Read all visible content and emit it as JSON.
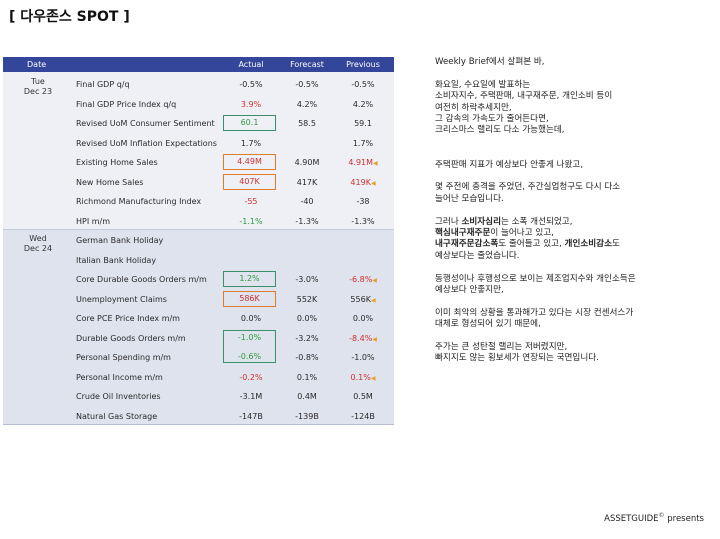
{
  "title": "[ 다우존스 SPOT ]",
  "table": {
    "headers": {
      "date": "Date",
      "actual": "Actual",
      "forecast": "Forecast",
      "previous": "Previous"
    },
    "days": [
      {
        "day": "Tue",
        "date": "Dec 23"
      },
      {
        "day": "Wed",
        "date": "Dec 24"
      }
    ],
    "rows": [
      {
        "event": "Final GDP q/q",
        "actual": "-0.5%",
        "forecast": "-0.5%",
        "previous": "-0.5%"
      },
      {
        "event": "Final GDP Price Index q/q",
        "actual": "3.9%",
        "forecast": "4.2%",
        "previous": "4.2%"
      },
      {
        "event": "Revised UoM Consumer Sentiment",
        "actual": "60.1",
        "forecast": "58.5",
        "previous": "59.1"
      },
      {
        "event": "Revised UoM Inflation Expectations",
        "actual": "1.7%",
        "forecast": "",
        "previous": "1.7%"
      },
      {
        "event": "Existing Home Sales",
        "actual": "4.49M",
        "forecast": "4.90M",
        "previous": "4.91M"
      },
      {
        "event": "New Home Sales",
        "actual": "407K",
        "forecast": "417K",
        "previous": "419K"
      },
      {
        "event": "Richmond Manufacturing Index",
        "actual": "-55",
        "forecast": "-40",
        "previous": "-38"
      },
      {
        "event": "HPI m/m",
        "actual": "-1.1%",
        "forecast": "-1.3%",
        "previous": "-1.3%"
      },
      {
        "event": "German Bank Holiday",
        "actual": "",
        "forecast": "",
        "previous": ""
      },
      {
        "event": "Italian Bank Holiday",
        "actual": "",
        "forecast": "",
        "previous": ""
      },
      {
        "event": "Core Durable Goods Orders m/m",
        "actual": "1.2%",
        "forecast": "-3.0%",
        "previous": "-6.8%"
      },
      {
        "event": "Unemployment Claims",
        "actual": "586K",
        "forecast": "552K",
        "previous": "556K"
      },
      {
        "event": "Core PCE Price Index m/m",
        "actual": "0.0%",
        "forecast": "0.0%",
        "previous": "0.0%"
      },
      {
        "event": "Durable Goods Orders m/m",
        "actual": "-1.0%",
        "forecast": "-3.2%",
        "previous": "-8.4%"
      },
      {
        "event": "Personal Spending m/m",
        "actual": "-0.6%",
        "forecast": "-0.8%",
        "previous": "-1.0%"
      },
      {
        "event": "Personal Income m/m",
        "actual": "-0.2%",
        "forecast": "0.1%",
        "previous": "0.1%"
      },
      {
        "event": "Crude Oil Inventories",
        "actual": "-3.1M",
        "forecast": "0.4M",
        "previous": "0.5M"
      },
      {
        "event": "Natural Gas Storage",
        "actual": "-147B",
        "forecast": "-139B",
        "previous": "-124B"
      }
    ]
  },
  "brief": {
    "intro": "Weekly Brief에서 살펴본 바,",
    "p1": [
      "화요일, 수요일에 발표하는",
      "소비자지수, 주택판매, 내구재주문, 개인소비 등이",
      "여전히 하락추세지만,",
      "그 감속의 가속도가 줄어든다면,",
      "크리스마스 랠리도 다소 가능했는데,"
    ],
    "p2": "주택판매 지표가 예상보다 안좋게 나왔고,",
    "p3": [
      "몇 주전에 충격을 주었던, 주간실업청구도 다시 다소",
      "늘어난 모습입니다."
    ],
    "p4_line1_pre": "그러나 ",
    "p4_line1_bold": "소비자심리",
    "p4_line1_post": "는 소폭 개선되었고,",
    "p4_line2_bold": "핵심내구재주문",
    "p4_line2_post": "이 늘어나고 있고,",
    "p4_line3_bold1": "내구재주문감소폭",
    "p4_line3_mid": "도 줄어들고 있고, ",
    "p4_line3_bold2": "개인소비감소",
    "p4_line3_post": "도",
    "p4_line4": "예상보다는 줄었습니다.",
    "p5": [
      "동행성이나 후행성으로 보이는 제조업지수와 개인소득은",
      "예상보다 안좋지만,"
    ],
    "p6": [
      "이미 최악의 상황을 통과해가고 있다는 시장 컨센서스가",
      "대체로 형성되어 있기 때문에,"
    ],
    "p7": [
      "주가는 큰 성탄절 랠리는 저버렸지만,",
      "빠지지도 않는 횡보세가 연장되는 국면입니다."
    ]
  },
  "footer": {
    "brand": "ASSETGUIDE",
    "mark": "©",
    "suffix": " presents"
  }
}
